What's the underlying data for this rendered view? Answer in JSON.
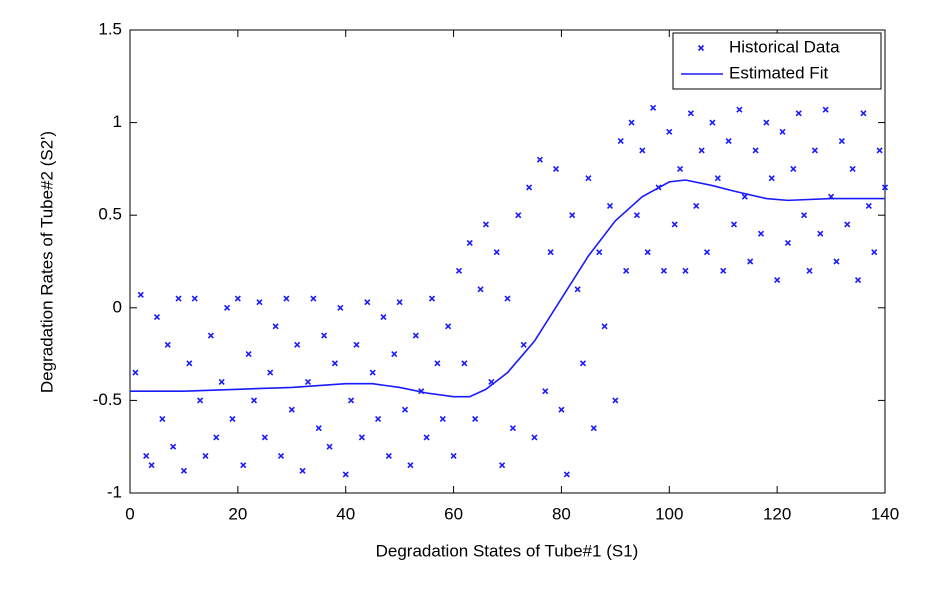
{
  "chart_data": {
    "type": "scatter",
    "xlabel": "Degradation States of Tube#1 (S1)",
    "ylabel": "Degradation Rates of Tube#2 (S2')",
    "xlim": [
      0,
      140
    ],
    "ylim": [
      -1,
      1.5
    ],
    "xticks": [
      0,
      20,
      40,
      60,
      80,
      100,
      120,
      140
    ],
    "yticks": [
      -1,
      -0.5,
      0,
      0.5,
      1,
      1.5
    ],
    "legend": "upper right",
    "series": [
      {
        "name": "Historical Data",
        "color": "#1a1aff",
        "style": "marker",
        "x": [
          1,
          2,
          3,
          4,
          5,
          6,
          7,
          8,
          9,
          10,
          11,
          12,
          13,
          14,
          15,
          16,
          17,
          18,
          19,
          20,
          21,
          22,
          23,
          24,
          25,
          26,
          27,
          28,
          29,
          30,
          31,
          32,
          33,
          34,
          35,
          36,
          37,
          38,
          39,
          40,
          41,
          42,
          43,
          44,
          45,
          46,
          47,
          48,
          49,
          50,
          51,
          52,
          53,
          54,
          55,
          56,
          57,
          58,
          59,
          60,
          61,
          62,
          63,
          64,
          65,
          66,
          67,
          68,
          69,
          70,
          71,
          72,
          73,
          74,
          75,
          76,
          77,
          78,
          79,
          80,
          81,
          82,
          83,
          84,
          85,
          86,
          87,
          88,
          89,
          90,
          91,
          92,
          93,
          94,
          95,
          96,
          97,
          98,
          99,
          100,
          101,
          102,
          103,
          104,
          105,
          106,
          107,
          108,
          109,
          110,
          111,
          112,
          113,
          114,
          115,
          116,
          117,
          118,
          119,
          120,
          121,
          122,
          123,
          124,
          125,
          126,
          127,
          128,
          129,
          130,
          131,
          132,
          133,
          134,
          135,
          136,
          137,
          138,
          139,
          140
        ],
        "values": [
          -0.35,
          0.07,
          -0.8,
          -0.85,
          -0.05,
          -0.6,
          -0.2,
          -0.75,
          0.05,
          -0.88,
          -0.3,
          0.05,
          -0.5,
          -0.8,
          -0.15,
          -0.7,
          -0.4,
          0.0,
          -0.6,
          0.05,
          -0.85,
          -0.25,
          -0.5,
          0.03,
          -0.7,
          -0.35,
          -0.1,
          -0.8,
          0.05,
          -0.55,
          -0.2,
          -0.88,
          -0.4,
          0.05,
          -0.65,
          -0.15,
          -0.75,
          -0.3,
          0.0,
          -0.9,
          -0.5,
          -0.2,
          -0.7,
          0.03,
          -0.35,
          -0.6,
          -0.05,
          -0.8,
          -0.25,
          0.03,
          -0.55,
          -0.85,
          -0.15,
          -0.45,
          -0.7,
          0.05,
          -0.3,
          -0.6,
          -0.1,
          -0.8,
          0.2,
          -0.3,
          0.35,
          -0.6,
          0.1,
          0.45,
          -0.4,
          0.3,
          -0.85,
          0.05,
          -0.65,
          0.5,
          -0.2,
          0.65,
          -0.7,
          0.8,
          -0.45,
          0.3,
          0.75,
          -0.55,
          -0.9,
          0.5,
          0.1,
          -0.3,
          0.7,
          -0.65,
          0.3,
          -0.1,
          0.55,
          -0.5,
          0.9,
          0.2,
          1.0,
          0.5,
          0.85,
          0.3,
          1.08,
          0.65,
          0.2,
          0.95,
          0.45,
          0.75,
          0.2,
          1.05,
          0.55,
          0.85,
          0.3,
          1.0,
          0.7,
          0.2,
          0.9,
          0.45,
          1.07,
          0.6,
          0.25,
          0.85,
          0.4,
          1.0,
          0.7,
          0.15,
          0.95,
          0.35,
          0.75,
          1.05,
          0.5,
          0.2,
          0.85,
          0.4,
          1.07,
          0.6,
          0.25,
          0.9,
          0.45,
          0.75,
          0.15,
          1.05,
          0.55,
          0.3,
          0.85,
          0.65
        ]
      },
      {
        "name": "Estimated Fit",
        "color": "#1a1aff",
        "style": "line",
        "x": [
          0,
          10,
          20,
          30,
          40,
          45,
          50,
          55,
          60,
          63,
          66,
          70,
          75,
          80,
          85,
          90,
          95,
          100,
          103,
          108,
          112,
          118,
          122,
          130,
          140
        ],
        "values": [
          -0.45,
          -0.45,
          -0.44,
          -0.43,
          -0.41,
          -0.41,
          -0.43,
          -0.46,
          -0.48,
          -0.48,
          -0.44,
          -0.35,
          -0.18,
          0.05,
          0.28,
          0.47,
          0.6,
          0.68,
          0.69,
          0.66,
          0.63,
          0.59,
          0.58,
          0.59,
          0.59
        ]
      }
    ]
  }
}
